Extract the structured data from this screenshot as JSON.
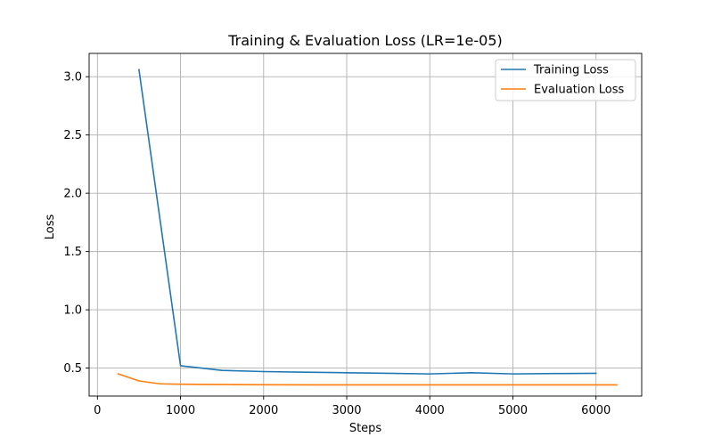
{
  "chart_data": {
    "type": "line",
    "title": "Training & Evaluation Loss (LR=1e-05)",
    "xlabel": "Steps",
    "ylabel": "Loss",
    "xlim": [
      -100,
      6550
    ],
    "ylim": [
      0.26,
      3.2
    ],
    "xticks": [
      0,
      1000,
      2000,
      3000,
      4000,
      5000,
      6000
    ],
    "yticks": [
      0.5,
      1.0,
      1.5,
      2.0,
      2.5,
      3.0
    ],
    "xtick_labels": [
      "0",
      "1000",
      "2000",
      "3000",
      "4000",
      "5000",
      "6000"
    ],
    "ytick_labels": [
      "0.5",
      "1.0",
      "1.5",
      "2.0",
      "2.5",
      "3.0"
    ],
    "grid": true,
    "legend_position": "top-right",
    "series": [
      {
        "name": "Training Loss",
        "color": "#1f77b4",
        "x": [
          500,
          1000,
          1500,
          2000,
          2500,
          3000,
          3500,
          4000,
          4500,
          5000,
          5500,
          6000
        ],
        "y": [
          3.06,
          0.52,
          0.48,
          0.47,
          0.465,
          0.46,
          0.455,
          0.45,
          0.46,
          0.45,
          0.453,
          0.455
        ]
      },
      {
        "name": "Evaluation Loss",
        "color": "#ff7f0e",
        "x": [
          250,
          500,
          750,
          1000,
          1250,
          1500,
          1750,
          2000,
          2500,
          3000,
          3500,
          4000,
          4500,
          5000,
          5500,
          6000,
          6250
        ],
        "y": [
          0.45,
          0.39,
          0.365,
          0.362,
          0.36,
          0.359,
          0.358,
          0.357,
          0.356,
          0.356,
          0.356,
          0.356,
          0.356,
          0.356,
          0.356,
          0.356,
          0.356
        ]
      }
    ]
  }
}
